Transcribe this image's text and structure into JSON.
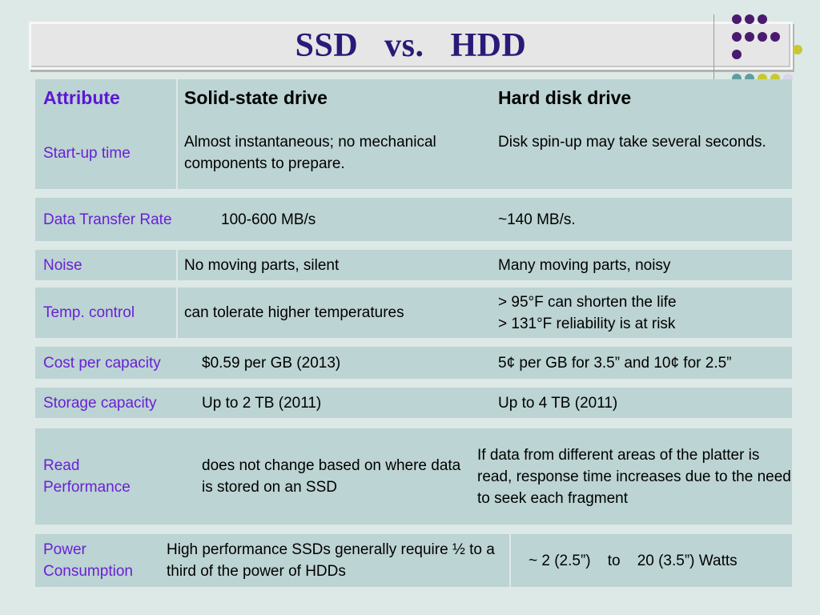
{
  "title": "SSD   vs.   HDD",
  "decor": {
    "dot_colors": {
      "purple": "#4a1a70",
      "olive": "#c8c830",
      "teal": "#5e9ea0",
      "lavender": "#d9d4ec"
    }
  },
  "table": {
    "header": {
      "attribute": "Attribute",
      "ssd": "Solid-state drive",
      "hdd": "Hard disk drive"
    },
    "rows": [
      {
        "attribute": "Start-up time",
        "ssd": "Almost instantaneous; no mechanical components to prepare.",
        "hdd": "Disk spin-up may take several seconds."
      },
      {
        "attribute": "Data Transfer Rate",
        "ssd": "100-600 MB/s",
        "hdd": "~140 MB/s."
      },
      {
        "attribute": "Noise",
        "ssd": "No moving parts, silent",
        "hdd": "Many moving parts, noisy"
      },
      {
        "attribute": "Temp. control",
        "ssd": "can tolerate higher temperatures",
        "hdd_lines": [
          "> 95°F can shorten the life",
          "> 131°F reliability is at risk"
        ]
      },
      {
        "attribute": "Cost per capacity",
        "ssd": "$0.59 per GB (2013)",
        "hdd": "5¢ per GB for 3.5” and 10¢ for 2.5”"
      },
      {
        "attribute": "Storage capacity",
        "ssd": "Up to 2 TB   (2011)",
        "hdd": "Up to 4 TB  (2011)"
      },
      {
        "attribute": "Read Performance",
        "ssd": "does not change based on where data is stored on an SSD",
        "hdd": "If data from different areas of the platter is read, response time increases due to the need to seek each fragment"
      },
      {
        "attribute": "Power Consumption",
        "ssd": "High performance SSDs generally require ½ to a third of the power of HDDs",
        "hdd": "~ 2 (2.5”)    to    20 (3.5”) Watts"
      }
    ]
  }
}
